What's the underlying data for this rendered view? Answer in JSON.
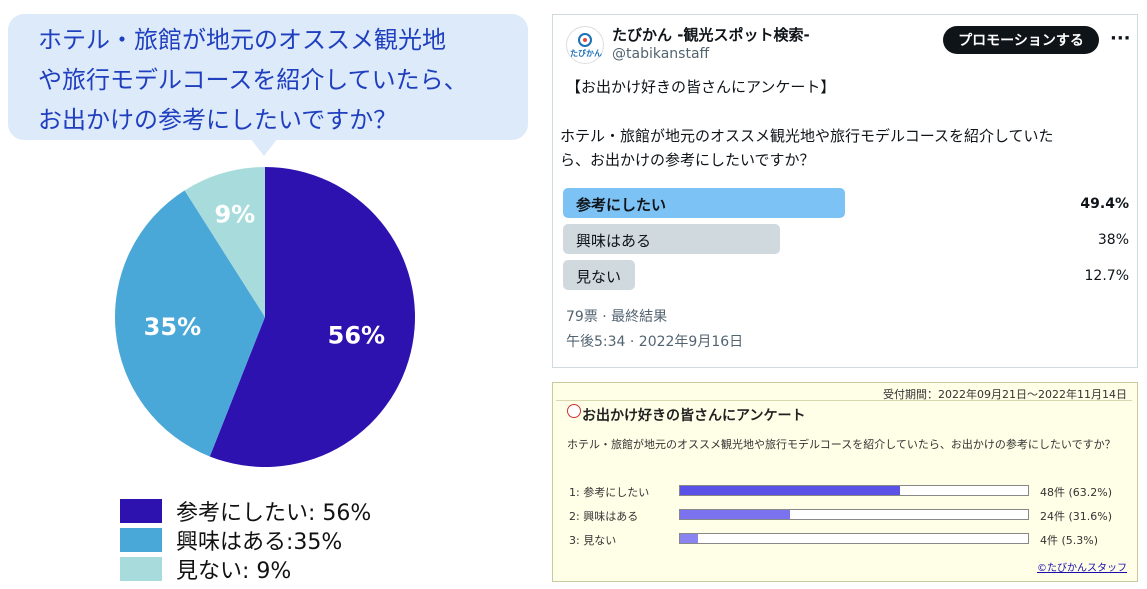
{
  "bubble": {
    "line1": "ホテル・旅館が地元のオススメ観光地",
    "line2": "や旅行モデルコースを紹介していたら、",
    "line3": "お出かけの参考にしたいですか？"
  },
  "chart_data": {
    "type": "pie",
    "categories": [
      "参考にしたい",
      "興味はある",
      "見ない"
    ],
    "values": [
      56,
      35,
      9
    ],
    "labels": [
      "56%",
      "35%",
      "9%"
    ],
    "colors": [
      "#2e12b0",
      "#4aa8d8",
      "#a8dcdc"
    ],
    "legend": [
      "参考にしたい: 56%",
      "興味はある:35%",
      "見ない: 9%"
    ],
    "legend_placement": "bottom"
  },
  "twitter": {
    "account_name": "たびかん -観光スポット検索-",
    "handle": "@tabikanstaff",
    "logo_text": "たびかん",
    "promote_label": "プロモーションする",
    "more": "···",
    "title": "【お出かけ好きの皆さんにアンケート】",
    "question_line1": "ホテル・旅館が地元のオススメ観光地や旅行モデルコースを紹介していた",
    "question_line2": "ら、お出かけの参考にしたいですか？",
    "options": [
      {
        "label": "参考にしたい",
        "pct": "49.4%",
        "value": 49.4,
        "color": "#7dc2f5",
        "bold": true
      },
      {
        "label": "興味はある",
        "pct": "38%",
        "value": 38,
        "color": "#cfd9de",
        "bold": false
      },
      {
        "label": "見ない",
        "pct": "12.7%",
        "value": 12.7,
        "color": "#cfd9de",
        "bold": false
      }
    ],
    "votes": "79票 · 最終結果",
    "time": "午後5:34 · 2022年9月16日"
  },
  "survey": {
    "period": "受付期間：2022年09月21日～2022年11月14日",
    "title": "お出かけ好きの皆さんにアンケート",
    "question": "ホテル・旅館が地元のオススメ観光地や旅行モデルコースを紹介していたら、お出かけの参考にしたいですか？",
    "options": [
      {
        "label": "1: 参考にしたい",
        "count": "48件 (63.2%)",
        "value": 63.2,
        "color": "#5a52e6"
      },
      {
        "label": "2: 興味はある",
        "count": "24件 (31.6%)",
        "value": 31.6,
        "color": "#7a72ee"
      },
      {
        "label": "3: 見ない",
        "count": "4件 (5.3%)",
        "value": 5.3,
        "color": "#8a84f0"
      }
    ],
    "copyright": "©たびかんスタッフ"
  }
}
